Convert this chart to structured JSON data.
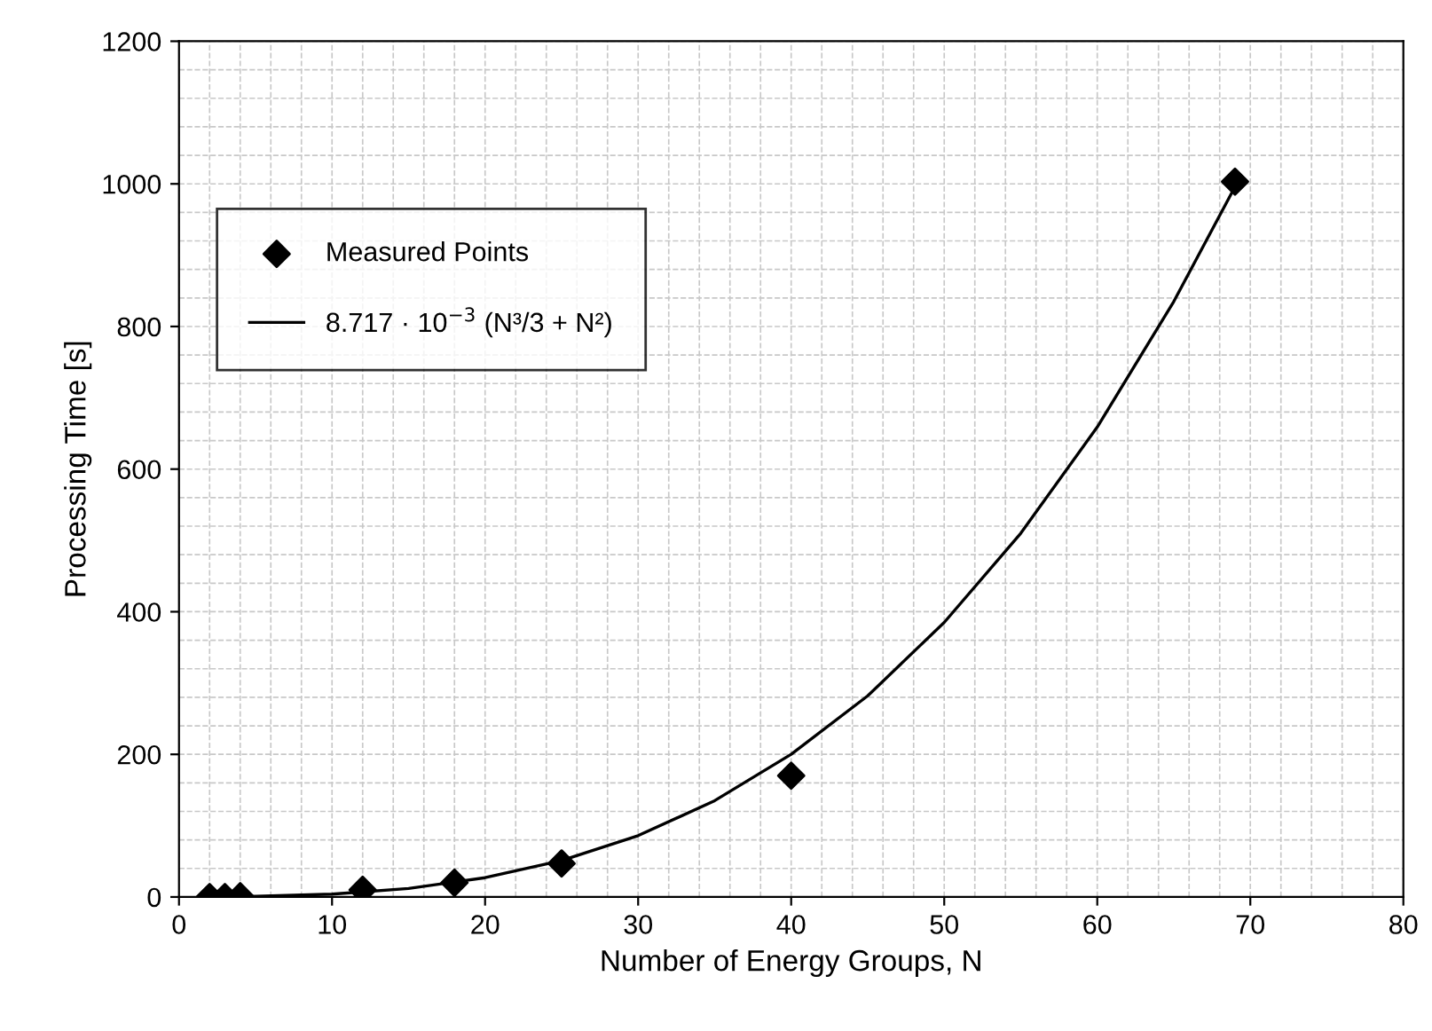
{
  "chart_data": {
    "type": "scatter",
    "xlabel": "Number of Energy Groups, N",
    "ylabel": "Processing Time [s]",
    "xlim": [
      0,
      80
    ],
    "xticks": [
      0,
      10,
      20,
      30,
      40,
      50,
      60,
      70,
      80
    ],
    "ylim": [
      0,
      1200
    ],
    "yticks": [
      0,
      200,
      400,
      600,
      800,
      1000,
      1200
    ],
    "grid": true,
    "legend": "upper left",
    "marker": "diamond",
    "series": [
      {
        "name": "Measured Points",
        "color": "#000000",
        "x": [
          2,
          3,
          4,
          12,
          18,
          25,
          40,
          69
        ],
        "values": [
          0,
          0,
          1,
          10,
          20,
          47,
          170,
          1003
        ]
      },
      {
        "name": "8.717 · 10$^{−3}$ (N³/3 + N²)",
        "type": "line",
        "marker": "none",
        "line_style": "solid",
        "color": "#000000",
        "x": [
          2,
          5,
          10,
          15,
          20,
          25,
          30,
          35,
          40,
          45,
          50,
          55,
          60,
          65,
          69
        ],
        "values": [
          0,
          1,
          4,
          12,
          27,
          51,
          86,
          135,
          200,
          282,
          385,
          510,
          659,
          835,
          996
        ]
      }
    ]
  }
}
